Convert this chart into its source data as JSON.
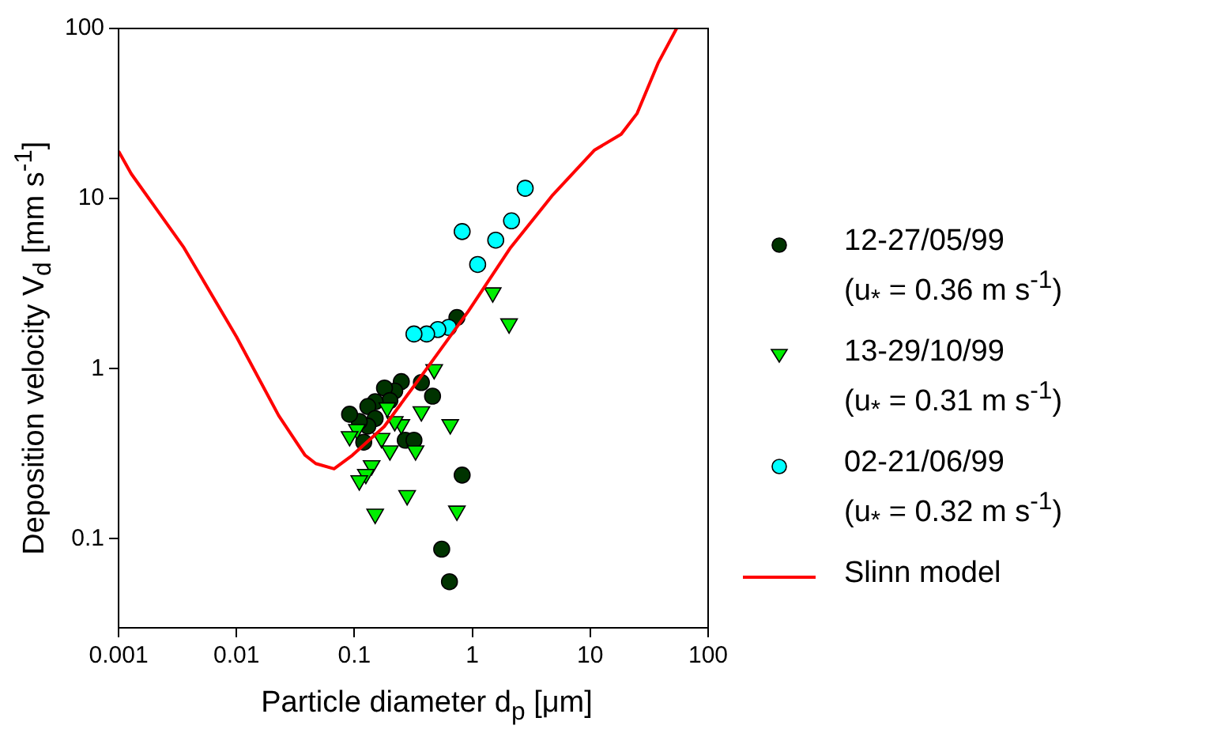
{
  "chart_data": {
    "type": "scatter",
    "xlabel": "Particle diameter d$_{p}$ [μm]",
    "ylabel": "Deposition velocity V$_{d}$ [mm s$^{-1}$]",
    "log": "xy",
    "xlim": [
      0.001,
      100
    ],
    "xticks": [
      0.001,
      0.01,
      0.1,
      1,
      10,
      100
    ],
    "ylim": [
      0.03,
      100
    ],
    "yticks": [
      0.1,
      1,
      10,
      100
    ],
    "grid": false,
    "legend": "right",
    "series": [
      {
        "name": "12-27/05/99 (u$_{*}$ = 0.36 m s$^{-1}$)",
        "color": "#003300",
        "marker": "circle",
        "x": [
          0.74,
          0.46,
          0.37,
          0.25,
          0.22,
          0.18,
          0.2,
          0.15,
          0.13,
          0.15,
          0.13,
          0.11,
          0.091,
          0.12,
          0.27,
          0.32,
          0.82,
          0.55,
          0.64
        ],
        "values": [
          2.0,
          0.69,
          0.83,
          0.84,
          0.74,
          0.77,
          0.65,
          0.64,
          0.6,
          0.51,
          0.46,
          0.49,
          0.54,
          0.37,
          0.38,
          0.38,
          0.237,
          0.087,
          0.056
        ]
      },
      {
        "name": "13-29/10/99 (u$_{*}$ = 0.31 m s$^{-1}$)",
        "color": "#00ee00",
        "marker": "triangle",
        "x": [
          1.49,
          2.05,
          0.475,
          0.37,
          0.65,
          0.19,
          0.25,
          0.22,
          0.17,
          0.105,
          0.091,
          0.2,
          0.33,
          0.14,
          0.125,
          0.11,
          0.28,
          0.15,
          0.74
        ],
        "values": [
          2.8,
          1.84,
          0.99,
          0.56,
          0.47,
          0.59,
          0.47,
          0.49,
          0.39,
          0.44,
          0.4,
          0.33,
          0.33,
          0.27,
          0.24,
          0.22,
          0.18,
          0.14,
          0.146
        ]
      },
      {
        "name": "02-21/06/99 (u$_{*}$ = 0.32 m s$^{-1}$)",
        "color": "#00ffff",
        "marker": "circle",
        "x": [
          2.81,
          2.15,
          1.58,
          1.11,
          0.82,
          0.63,
          0.51,
          0.41,
          0.32
        ],
        "values": [
          11.5,
          7.4,
          5.7,
          4.1,
          6.4,
          1.75,
          1.7,
          1.6,
          1.6
        ]
      },
      {
        "name": "Slinn model",
        "type": "line",
        "color": "#ff0000",
        "marker": "none",
        "line_style": "solid",
        "x": [
          0.001,
          0.00128,
          0.00358,
          0.01,
          0.0228,
          0.0382,
          0.047,
          0.0672,
          0.096,
          0.179,
          0.41,
          0.93,
          2.11,
          4.81,
          10.9,
          18.3,
          25,
          37.6,
          54
        ],
        "values": [
          19,
          14,
          5.15,
          1.54,
          0.53,
          0.31,
          0.277,
          0.258,
          0.31,
          0.457,
          1.0,
          2.19,
          5.15,
          10.5,
          19.3,
          23.9,
          31.7,
          62.5,
          100
        ]
      }
    ]
  }
}
